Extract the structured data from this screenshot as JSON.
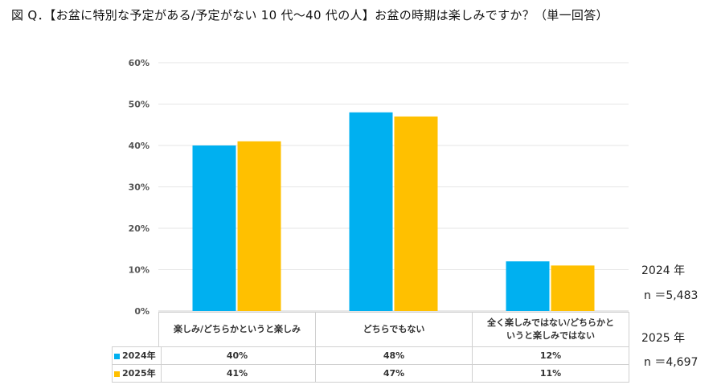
{
  "title": "図 Q．【お盆に特別な予定がある/予定がない 10 代～40 代の人】お盆の時期は楽しみですか？（単一回答）",
  "side_notes": {
    "y2024_label": "2024 年",
    "y2024_n": "n ＝5,483",
    "y2025_label": "2025 年",
    "y2025_n": "n ＝4,697"
  },
  "colors": {
    "series_2024": "#00B0F0",
    "series_2025": "#FFC000",
    "grid": "#e6e6e6"
  },
  "chart_data": {
    "type": "bar",
    "categories": [
      [
        "楽しみ/どちらかというと楽しみ"
      ],
      [
        "どちらでもない"
      ],
      [
        "全く楽しみではない/どちらかと",
        "いうと楽しみではない"
      ]
    ],
    "series": [
      {
        "name": "2024年",
        "values": [
          40,
          48,
          12
        ],
        "value_labels": [
          "40%",
          "48%",
          "12%"
        ]
      },
      {
        "name": "2025年",
        "values": [
          41,
          47,
          11
        ],
        "value_labels": [
          "41%",
          "47%",
          "11%"
        ]
      }
    ],
    "ylim": [
      0,
      60
    ],
    "yticks": [
      0,
      10,
      20,
      30,
      40,
      50,
      60
    ],
    "ytick_labels": [
      "0%",
      "10%",
      "20%",
      "30%",
      "40%",
      "50%",
      "60%"
    ],
    "grid": true,
    "legend": "data-table"
  }
}
